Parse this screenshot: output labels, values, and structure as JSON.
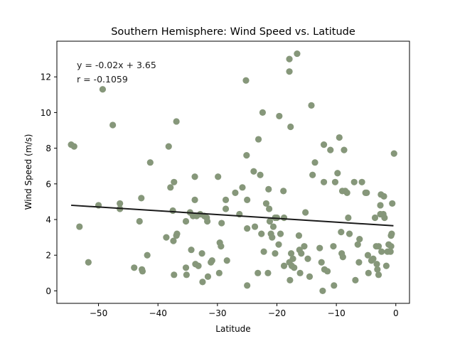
{
  "chart_data": {
    "type": "scatter",
    "title": "Southern Hemisphere: Wind Speed vs. Latitude",
    "xlabel": "Latitude",
    "ylabel": "Wind Speed (m/s)",
    "xlim": [
      -57,
      2.3
    ],
    "ylim": [
      -0.7,
      14.0
    ],
    "xticks": [
      -50,
      -40,
      -30,
      -20,
      -10,
      0
    ],
    "yticks": [
      0,
      2,
      4,
      6,
      8,
      10,
      12
    ],
    "xtick_labels": [
      "−50",
      "−40",
      "−30",
      "−20",
      "−10",
      "0"
    ],
    "ytick_labels": [
      "0",
      "2",
      "4",
      "6",
      "8",
      "10",
      "12"
    ],
    "grid": false,
    "colors": {
      "points": "#86977a",
      "regression": "#1a1a1a",
      "axes": "#000000"
    },
    "annotation": {
      "equation": "y = -0.02x + 3.65",
      "r": "r = -0.1059"
    },
    "regression_line": {
      "x": [
        -54.6,
        -0.4
      ],
      "y": [
        4.8,
        3.65
      ]
    },
    "points": [
      [
        -54.6,
        8.2
      ],
      [
        -54.1,
        8.1
      ],
      [
        -53.2,
        3.6
      ],
      [
        -51.7,
        1.6
      ],
      [
        -50.0,
        4.8
      ],
      [
        -49.3,
        11.3
      ],
      [
        -47.6,
        9.3
      ],
      [
        -46.4,
        4.9
      ],
      [
        -46.4,
        4.6
      ],
      [
        -44.0,
        1.3
      ],
      [
        -43.1,
        3.9
      ],
      [
        -42.8,
        5.2
      ],
      [
        -42.7,
        1.2
      ],
      [
        -42.6,
        1.1
      ],
      [
        -41.8,
        2.0
      ],
      [
        -41.3,
        7.2
      ],
      [
        -38.6,
        3.0
      ],
      [
        -38.2,
        8.1
      ],
      [
        -37.9,
        5.8
      ],
      [
        -37.5,
        4.5
      ],
      [
        -37.4,
        2.8
      ],
      [
        -37.3,
        6.1
      ],
      [
        -37.3,
        0.9
      ],
      [
        -36.9,
        9.5
      ],
      [
        -36.9,
        3.1
      ],
      [
        -36.8,
        3.2
      ],
      [
        -35.3,
        1.3
      ],
      [
        -35.2,
        0.9
      ],
      [
        -35.3,
        3.9
      ],
      [
        -34.6,
        4.4
      ],
      [
        -34.4,
        2.3
      ],
      [
        -34.1,
        4.2
      ],
      [
        -33.8,
        6.4
      ],
      [
        -33.8,
        5.1
      ],
      [
        -33.7,
        1.5
      ],
      [
        -33.5,
        4.2
      ],
      [
        -33.2,
        1.4
      ],
      [
        -32.9,
        4.3
      ],
      [
        -32.6,
        2.1
      ],
      [
        -32.5,
        0.5
      ],
      [
        -32.2,
        4.2
      ],
      [
        -31.8,
        4.1
      ],
      [
        -31.7,
        3.9
      ],
      [
        -31.6,
        0.8
      ],
      [
        -31.1,
        1.6
      ],
      [
        -30.9,
        1.7
      ],
      [
        -29.9,
        6.4
      ],
      [
        -29.7,
        1.0
      ],
      [
        -29.6,
        2.7
      ],
      [
        -29.4,
        2.5
      ],
      [
        -29.3,
        3.8
      ],
      [
        -28.6,
        5.1
      ],
      [
        -28.6,
        4.6
      ],
      [
        -28.4,
        1.7
      ],
      [
        -27.0,
        5.5
      ],
      [
        -26.3,
        4.3
      ],
      [
        -25.8,
        5.8
      ],
      [
        -25.2,
        11.8
      ],
      [
        -25.1,
        7.6
      ],
      [
        -25.0,
        5.1
      ],
      [
        -25.0,
        3.5
      ],
      [
        -25.0,
        0.3
      ],
      [
        -23.9,
        6.7
      ],
      [
        -23.7,
        3.6
      ],
      [
        -23.2,
        1.0
      ],
      [
        -23.1,
        8.5
      ],
      [
        -22.8,
        6.5
      ],
      [
        -22.6,
        3.2
      ],
      [
        -22.4,
        10.0
      ],
      [
        -22.2,
        2.2
      ],
      [
        -21.8,
        4.9
      ],
      [
        -21.5,
        1.0
      ],
      [
        -21.4,
        5.7
      ],
      [
        -21.3,
        4.6
      ],
      [
        -21.2,
        3.9
      ],
      [
        -21.0,
        3.2
      ],
      [
        -20.8,
        3.0
      ],
      [
        -20.6,
        3.6
      ],
      [
        -20.3,
        4.1
      ],
      [
        -20.3,
        2.1
      ],
      [
        -20.0,
        4.1
      ],
      [
        -19.7,
        2.6
      ],
      [
        -19.6,
        9.8
      ],
      [
        -19.4,
        3.2
      ],
      [
        -18.9,
        5.6
      ],
      [
        -18.8,
        4.1
      ],
      [
        -18.8,
        1.4
      ],
      [
        -17.9,
        13.0
      ],
      [
        -17.9,
        12.3
      ],
      [
        -17.7,
        9.2
      ],
      [
        -17.9,
        1.6
      ],
      [
        -17.8,
        0.6
      ],
      [
        -17.6,
        2.1
      ],
      [
        -17.5,
        1.4
      ],
      [
        -17.3,
        1.8
      ],
      [
        -17.1,
        1.3
      ],
      [
        -16.6,
        13.3
      ],
      [
        -16.3,
        3.1
      ],
      [
        -16.2,
        2.3
      ],
      [
        -16.1,
        1.0
      ],
      [
        -15.9,
        2.1
      ],
      [
        -15.4,
        2.5
      ],
      [
        -15.2,
        4.4
      ],
      [
        -14.8,
        1.8
      ],
      [
        -14.5,
        0.8
      ],
      [
        -14.2,
        10.4
      ],
      [
        -14.0,
        6.5
      ],
      [
        -13.6,
        7.2
      ],
      [
        -12.8,
        2.4
      ],
      [
        -12.5,
        1.6
      ],
      [
        -12.3,
        0.0
      ],
      [
        -12.1,
        8.2
      ],
      [
        -12.1,
        6.1
      ],
      [
        -12.0,
        1.2
      ],
      [
        -11.5,
        1.1
      ],
      [
        -11.0,
        7.9
      ],
      [
        -10.5,
        2.5
      ],
      [
        -10.4,
        0.3
      ],
      [
        -10.2,
        6.1
      ],
      [
        -9.8,
        6.6
      ],
      [
        -9.5,
        8.6
      ],
      [
        -9.2,
        3.3
      ],
      [
        -9.1,
        2.1
      ],
      [
        -9.0,
        5.6
      ],
      [
        -8.9,
        1.9
      ],
      [
        -8.7,
        7.9
      ],
      [
        -8.5,
        5.6
      ],
      [
        -8.2,
        5.5
      ],
      [
        -8.0,
        4.1
      ],
      [
        -7.8,
        3.2
      ],
      [
        -7.0,
        6.1
      ],
      [
        -6.8,
        0.6
      ],
      [
        -6.4,
        2.6
      ],
      [
        -6.2,
        1.6
      ],
      [
        -6.1,
        2.9
      ],
      [
        -5.7,
        6.1
      ],
      [
        -5.1,
        5.5
      ],
      [
        -4.9,
        5.5
      ],
      [
        -4.7,
        2.0
      ],
      [
        -4.6,
        1.0
      ],
      [
        -4.1,
        1.7
      ],
      [
        -3.8,
        1.8
      ],
      [
        -3.5,
        4.1
      ],
      [
        -3.3,
        2.5
      ],
      [
        -3.2,
        1.5
      ],
      [
        -3.1,
        1.2
      ],
      [
        -2.9,
        0.9
      ],
      [
        -2.9,
        2.5
      ],
      [
        -2.6,
        4.3
      ],
      [
        -2.6,
        4.8
      ],
      [
        -2.5,
        5.4
      ],
      [
        -2.4,
        2.2
      ],
      [
        -2.1,
        4.3
      ],
      [
        -2.0,
        5.3
      ],
      [
        -1.9,
        4.1
      ],
      [
        -1.6,
        1.4
      ],
      [
        -1.4,
        2.2
      ],
      [
        -1.2,
        2.6
      ],
      [
        -0.9,
        2.2
      ],
      [
        -0.8,
        2.5
      ],
      [
        -0.8,
        3.1
      ],
      [
        -0.7,
        3.2
      ],
      [
        -0.6,
        4.9
      ],
      [
        -0.3,
        7.7
      ]
    ]
  }
}
